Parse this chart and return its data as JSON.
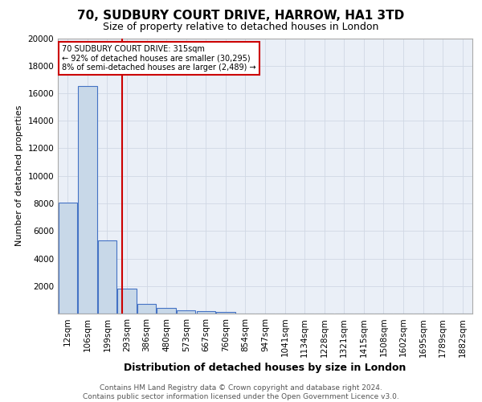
{
  "title": "70, SUDBURY COURT DRIVE, HARROW, HA1 3TD",
  "subtitle": "Size of property relative to detached houses in London",
  "xlabel": "Distribution of detached houses by size in London",
  "ylabel": "Number of detached properties",
  "bin_labels": [
    "12sqm",
    "106sqm",
    "199sqm",
    "293sqm",
    "386sqm",
    "480sqm",
    "573sqm",
    "667sqm",
    "760sqm",
    "854sqm",
    "947sqm",
    "1041sqm",
    "1134sqm",
    "1228sqm",
    "1321sqm",
    "1415sqm",
    "1508sqm",
    "1602sqm",
    "1695sqm",
    "1789sqm",
    "1882sqm"
  ],
  "bar_heights": [
    8050,
    16500,
    5300,
    1800,
    700,
    380,
    220,
    150,
    140,
    0,
    0,
    0,
    0,
    0,
    0,
    0,
    0,
    0,
    0,
    0,
    0
  ],
  "bar_color": "#c8d8e8",
  "bar_edge_color": "#4472c4",
  "vline_color": "#cc0000",
  "vline_pos": 2.76,
  "grid_color": "#d0d8e4",
  "background_color": "#eaeff7",
  "annotation_title": "70 SUDBURY COURT DRIVE: 315sqm",
  "annotation_line1": "← 92% of detached houses are smaller (30,295)",
  "annotation_line2": "8% of semi-detached houses are larger (2,489) →",
  "footer1": "Contains HM Land Registry data © Crown copyright and database right 2024.",
  "footer2": "Contains public sector information licensed under the Open Government Licence v3.0.",
  "ylim": [
    0,
    20000
  ],
  "yticks": [
    0,
    2000,
    4000,
    6000,
    8000,
    10000,
    12000,
    14000,
    16000,
    18000,
    20000
  ],
  "title_fontsize": 11,
  "subtitle_fontsize": 9,
  "xlabel_fontsize": 9,
  "ylabel_fontsize": 8,
  "tick_fontsize": 7.5,
  "footer_fontsize": 6.5
}
